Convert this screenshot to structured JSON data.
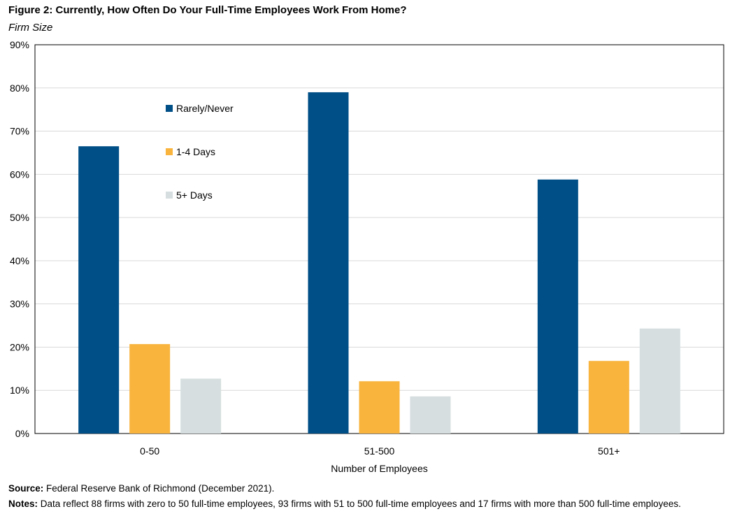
{
  "title": "Figure 2: Currently, How Often Do Your Full-Time Employees Work From Home?",
  "subtitle": "Firm Size",
  "source": {
    "label": "Source:",
    "text": "Federal Reserve Bank of Richmond (December 2021)."
  },
  "notes": {
    "label": "Notes:",
    "text": "Data reflect 88 firms with zero to 50 full-time employees, 93 firms with 51 to 500 full-time employees and 17 firms with more than 500 full-time employees."
  },
  "chart_data": {
    "type": "bar",
    "categories": [
      "0-50",
      "51-500",
      "501+"
    ],
    "series": [
      {
        "name": "Rarely/Never",
        "color": "#004f87",
        "values": [
          66.5,
          79.0,
          58.8
        ]
      },
      {
        "name": "1-4 Days",
        "color": "#f9b43e",
        "values": [
          20.7,
          12.1,
          16.8
        ]
      },
      {
        "name": "5+ Days",
        "color": "#d6dedf",
        "values": [
          12.7,
          8.6,
          24.3
        ]
      }
    ],
    "xlabel": "Number of Employees",
    "ylabel": "",
    "ylim": [
      0,
      90
    ],
    "yticks": [
      "0%",
      "10%",
      "20%",
      "30%",
      "40%",
      "50%",
      "60%",
      "70%",
      "80%",
      "90%"
    ],
    "grid": true,
    "legend_position": "upper-left-center"
  }
}
